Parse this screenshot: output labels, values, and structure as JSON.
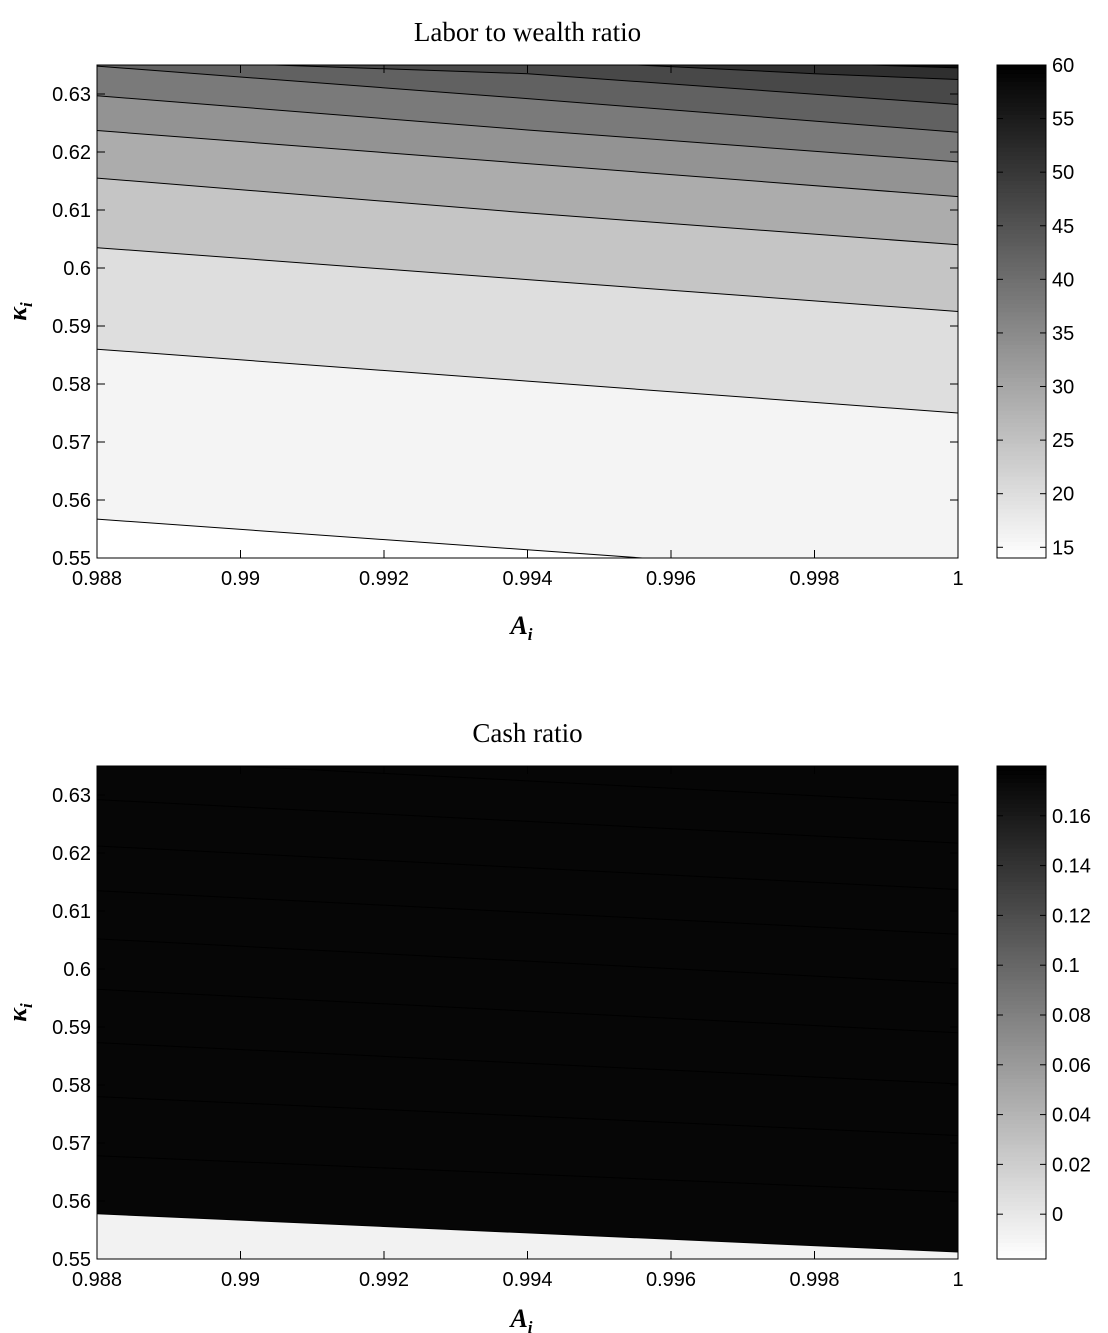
{
  "chart_data": [
    {
      "type": "contour",
      "title": "Labor to wealth ratio",
      "xlabel": "A",
      "xlabel_subscript": "i",
      "ylabel": "κ",
      "ylabel_subscript": "i",
      "xlim": [
        0.988,
        1.0
      ],
      "ylim": [
        0.55,
        0.635
      ],
      "xticks": [
        0.988,
        0.99,
        0.992,
        0.994,
        0.996,
        0.998,
        1.0
      ],
      "xtick_labels": [
        "0.988",
        "0.99",
        "0.992",
        "0.994",
        "0.996",
        "0.998",
        "1"
      ],
      "yticks": [
        0.55,
        0.56,
        0.57,
        0.58,
        0.59,
        0.6,
        0.61,
        0.62,
        0.63
      ],
      "ytick_labels": [
        "0.55",
        "0.56",
        "0.57",
        "0.58",
        "0.59",
        "0.6",
        "0.61",
        "0.62",
        "0.63"
      ],
      "colorbar": {
        "range": [
          14,
          60
        ],
        "ticks": [
          15,
          20,
          25,
          30,
          35,
          40,
          45,
          50,
          55,
          60
        ],
        "tick_labels": [
          "15",
          "20",
          "25",
          "30",
          "35",
          "40",
          "45",
          "50",
          "55",
          "60"
        ],
        "colormap": "white-to-black"
      },
      "contour_lines": [
        {
          "x": [
            0.988,
            0.9956
          ],
          "y": [
            0.5567,
            0.55
          ]
        },
        {
          "x": [
            0.988,
            0.994,
            1.0
          ],
          "y": [
            0.586,
            0.5805,
            0.575
          ]
        },
        {
          "x": [
            0.988,
            0.994,
            1.0
          ],
          "y": [
            0.6035,
            0.598,
            0.5925
          ]
        },
        {
          "x": [
            0.988,
            0.994,
            1.0
          ],
          "y": [
            0.6155,
            0.6095,
            0.604
          ]
        },
        {
          "x": [
            0.988,
            0.994,
            1.0
          ],
          "y": [
            0.6237,
            0.618,
            0.6123
          ]
        },
        {
          "x": [
            0.988,
            0.994,
            1.0
          ],
          "y": [
            0.6297,
            0.6238,
            0.6183
          ]
        },
        {
          "x": [
            0.988,
            0.994,
            1.0
          ],
          "y": [
            0.6348,
            0.6292,
            0.6234
          ]
        },
        {
          "x": [
            0.99,
            0.994,
            1.0
          ],
          "y": [
            0.6352,
            0.6335,
            0.6282
          ]
        },
        {
          "x": [
            0.9952,
            0.998,
            1.0
          ],
          "y": [
            0.6352,
            0.6335,
            0.6325
          ]
        },
        {
          "x": [
            0.9988,
            1.0
          ],
          "y": [
            0.635,
            0.6345
          ]
        }
      ],
      "fill_levels": [
        14.0,
        16.0,
        20.0,
        24.5,
        29.0,
        33.5,
        38.0,
        42.5,
        47.0,
        51.5,
        58.0
      ]
    },
    {
      "type": "contour",
      "title": "Cash ratio",
      "xlabel": "A",
      "xlabel_subscript": "i",
      "ylabel": "κ",
      "ylabel_subscript": "i",
      "xlim": [
        0.988,
        1.0
      ],
      "ylim": [
        0.55,
        0.635
      ],
      "xticks": [
        0.988,
        0.99,
        0.992,
        0.994,
        0.996,
        0.998,
        1.0
      ],
      "xtick_labels": [
        "0.988",
        "0.99",
        "0.992",
        "0.994",
        "0.996",
        "0.998",
        "1"
      ],
      "yticks": [
        0.55,
        0.56,
        0.57,
        0.58,
        0.59,
        0.6,
        0.61,
        0.62,
        0.63
      ],
      "ytick_labels": [
        "0.55",
        "0.56",
        "0.57",
        "0.58",
        "0.59",
        "0.6",
        "0.61",
        "0.62",
        "0.63"
      ],
      "colorbar": {
        "range": [
          -0.018,
          0.18
        ],
        "ticks": [
          0,
          0.02,
          0.04,
          0.06,
          0.08,
          0.1,
          0.12,
          0.14,
          0.16
        ],
        "tick_labels": [
          "0",
          "0.02",
          "0.04",
          "0.06",
          "0.08",
          "0.1",
          "0.12",
          "0.14",
          "0.16"
        ],
        "colormap": "white-to-black"
      },
      "contour_lines": [
        {
          "x": [
            0.99,
            1.0
          ],
          "y": [
            0.635,
            0.6286
          ]
        },
        {
          "x": [
            0.988,
            1.0
          ],
          "y": [
            0.6292,
            0.6217
          ]
        },
        {
          "x": [
            0.988,
            1.0
          ],
          "y": [
            0.6212,
            0.6137
          ]
        },
        {
          "x": [
            0.988,
            1.0
          ],
          "y": [
            0.6135,
            0.606
          ]
        },
        {
          "x": [
            0.988,
            1.0
          ],
          "y": [
            0.6052,
            0.5975
          ]
        },
        {
          "x": [
            0.988,
            1.0
          ],
          "y": [
            0.5965,
            0.589
          ]
        },
        {
          "x": [
            0.988,
            1.0
          ],
          "y": [
            0.5873,
            0.5802
          ]
        },
        {
          "x": [
            0.988,
            1.0
          ],
          "y": [
            0.578,
            0.5713
          ]
        },
        {
          "x": [
            0.988,
            1.0
          ],
          "y": [
            0.5678,
            0.5615
          ]
        },
        {
          "x": [
            0.988,
            1.0
          ],
          "y": [
            0.5578,
            0.5512
          ]
        }
      ],
      "fill_levels": [
        -0.008,
        0.005,
        0.02,
        0.04,
        0.06,
        0.08,
        0.1,
        0.12,
        0.14,
        0.16,
        0.175
      ]
    }
  ]
}
